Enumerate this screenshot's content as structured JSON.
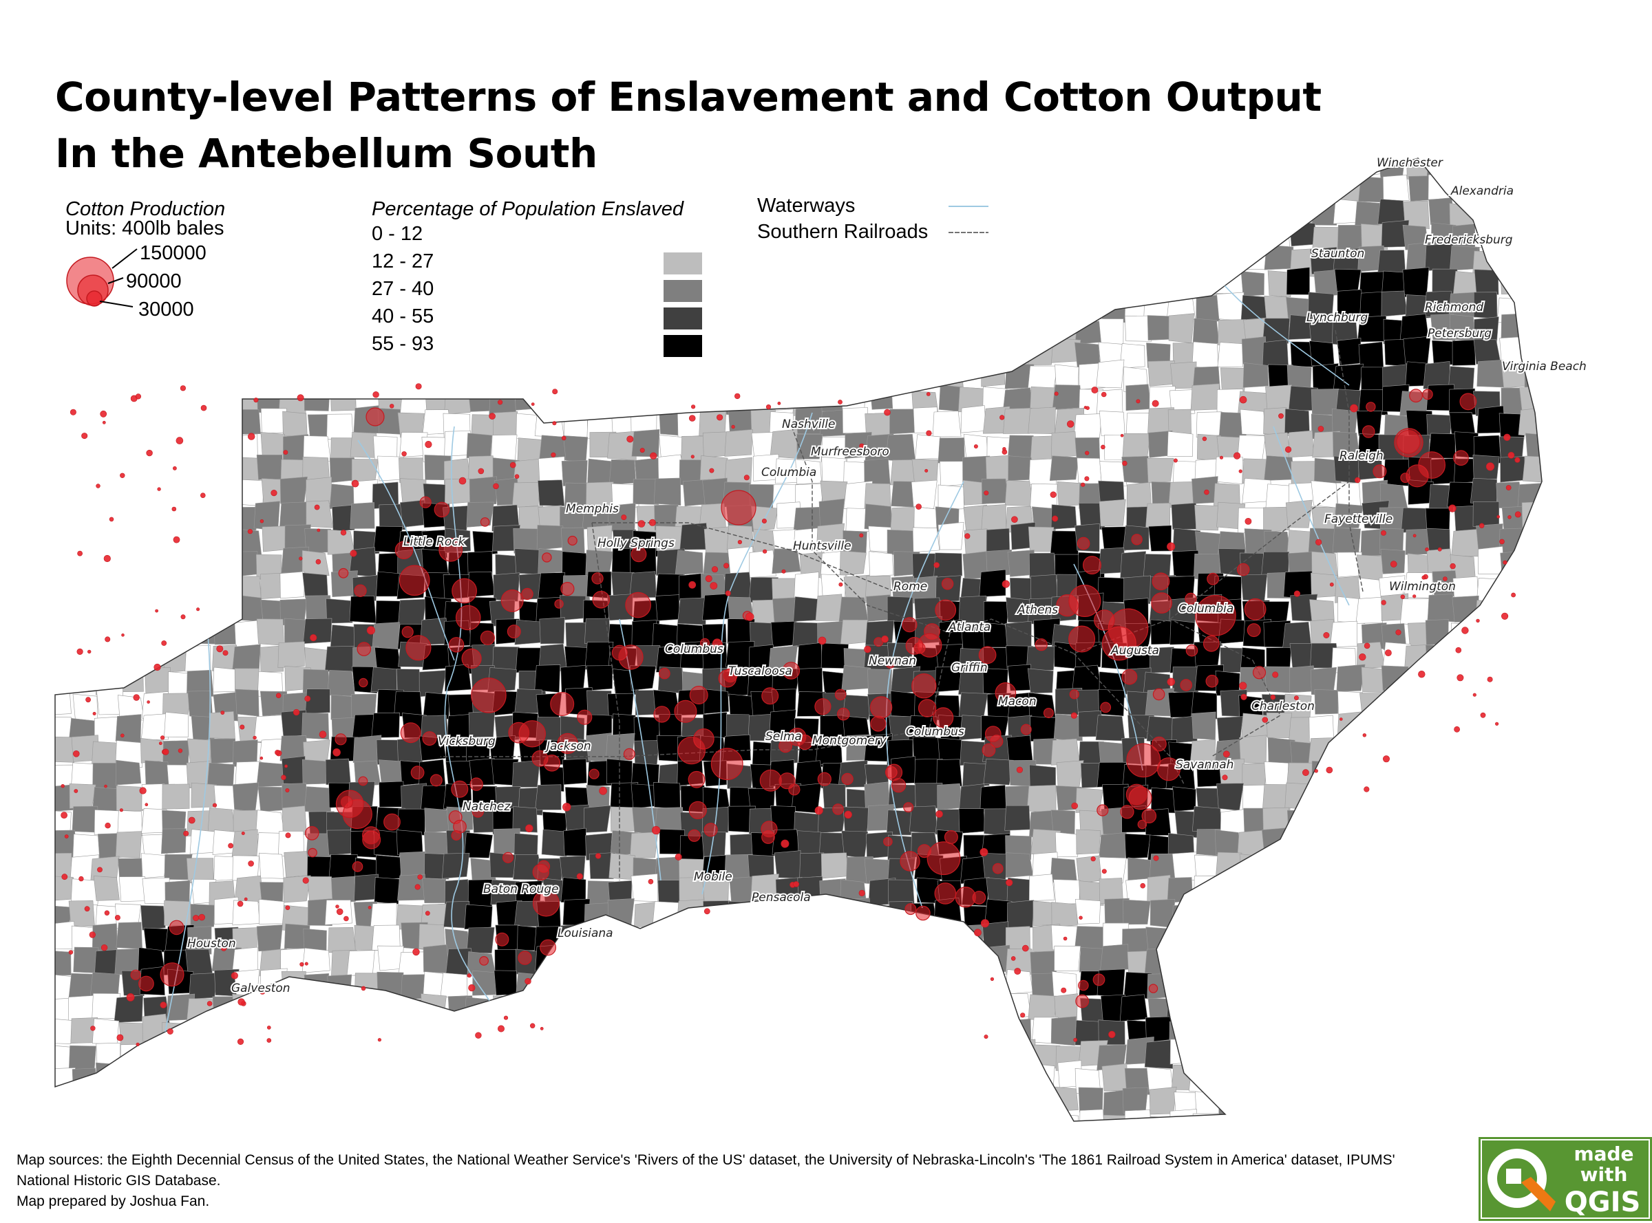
{
  "title": {
    "line1": "County-level Patterns of Enslavement and Cotton Output",
    "line2": "In the Antebellum South"
  },
  "cotton_legend": {
    "heading": "Cotton Production",
    "units": "Units: 400lb bales",
    "sizes": [
      "150000",
      "90000",
      "30000"
    ],
    "color": "#e8242c"
  },
  "enslaved_legend": {
    "heading": "Percentage of Population Enslaved",
    "classes": [
      {
        "label": "0 - 12",
        "color": "#ffffff"
      },
      {
        "label": "12 - 27",
        "color": "#bdbdbd"
      },
      {
        "label": "27 - 40",
        "color": "#7f7f7f"
      },
      {
        "label": "40 - 55",
        "color": "#404040"
      },
      {
        "label": "55 - 93",
        "color": "#000000"
      }
    ]
  },
  "lines_legend": {
    "waterways": "Waterways",
    "railroads": "Southern Railroads",
    "waterway_color": "#9ec9e2"
  },
  "cities": [
    {
      "name": "Winchester"
    },
    {
      "name": "Alexandria"
    },
    {
      "name": "Fredericksburg"
    },
    {
      "name": "Staunton"
    },
    {
      "name": "Richmond"
    },
    {
      "name": "Lynchburg"
    },
    {
      "name": "Petersburg"
    },
    {
      "name": "Virginia Beach"
    },
    {
      "name": "Nashville"
    },
    {
      "name": "Murfreesboro"
    },
    {
      "name": "Columbia"
    },
    {
      "name": "Raleigh"
    },
    {
      "name": "Memphis"
    },
    {
      "name": "Fayetteville"
    },
    {
      "name": "Little Rock"
    },
    {
      "name": "Holly Springs"
    },
    {
      "name": "Huntsville"
    },
    {
      "name": "Wilmington"
    },
    {
      "name": "Rome"
    },
    {
      "name": "Columbia"
    },
    {
      "name": "Athens"
    },
    {
      "name": "Atlanta"
    },
    {
      "name": "Columbus"
    },
    {
      "name": "Newnan"
    },
    {
      "name": "Augusta"
    },
    {
      "name": "Tuscaloosa"
    },
    {
      "name": "Griffin"
    },
    {
      "name": "Macon"
    },
    {
      "name": "Charleston"
    },
    {
      "name": "Columbus"
    },
    {
      "name": "Vicksburg"
    },
    {
      "name": "Jackson"
    },
    {
      "name": "Selma"
    },
    {
      "name": "Montgomery"
    },
    {
      "name": "Savannah"
    },
    {
      "name": "Natchez"
    },
    {
      "name": "Mobile"
    },
    {
      "name": "Baton Rouge"
    },
    {
      "name": "Pensacola"
    },
    {
      "name": "Louisiana"
    },
    {
      "name": "Houston"
    },
    {
      "name": "Galveston"
    }
  ],
  "footer": {
    "sources": "Map sources: the Eighth Decennial Census of the United States, the National Weather Service's 'Rivers of the US' dataset, the University of Nebraska-Lincoln's 'The 1861 Railroad System in America' dataset, IPUMS' National Historic GIS Database.",
    "credit": "Map prepared by Joshua Fan."
  },
  "logo": {
    "line1": "made",
    "line2": "with",
    "line3": "QGIS",
    "color": "#589632",
    "accent": "#ee7913"
  }
}
